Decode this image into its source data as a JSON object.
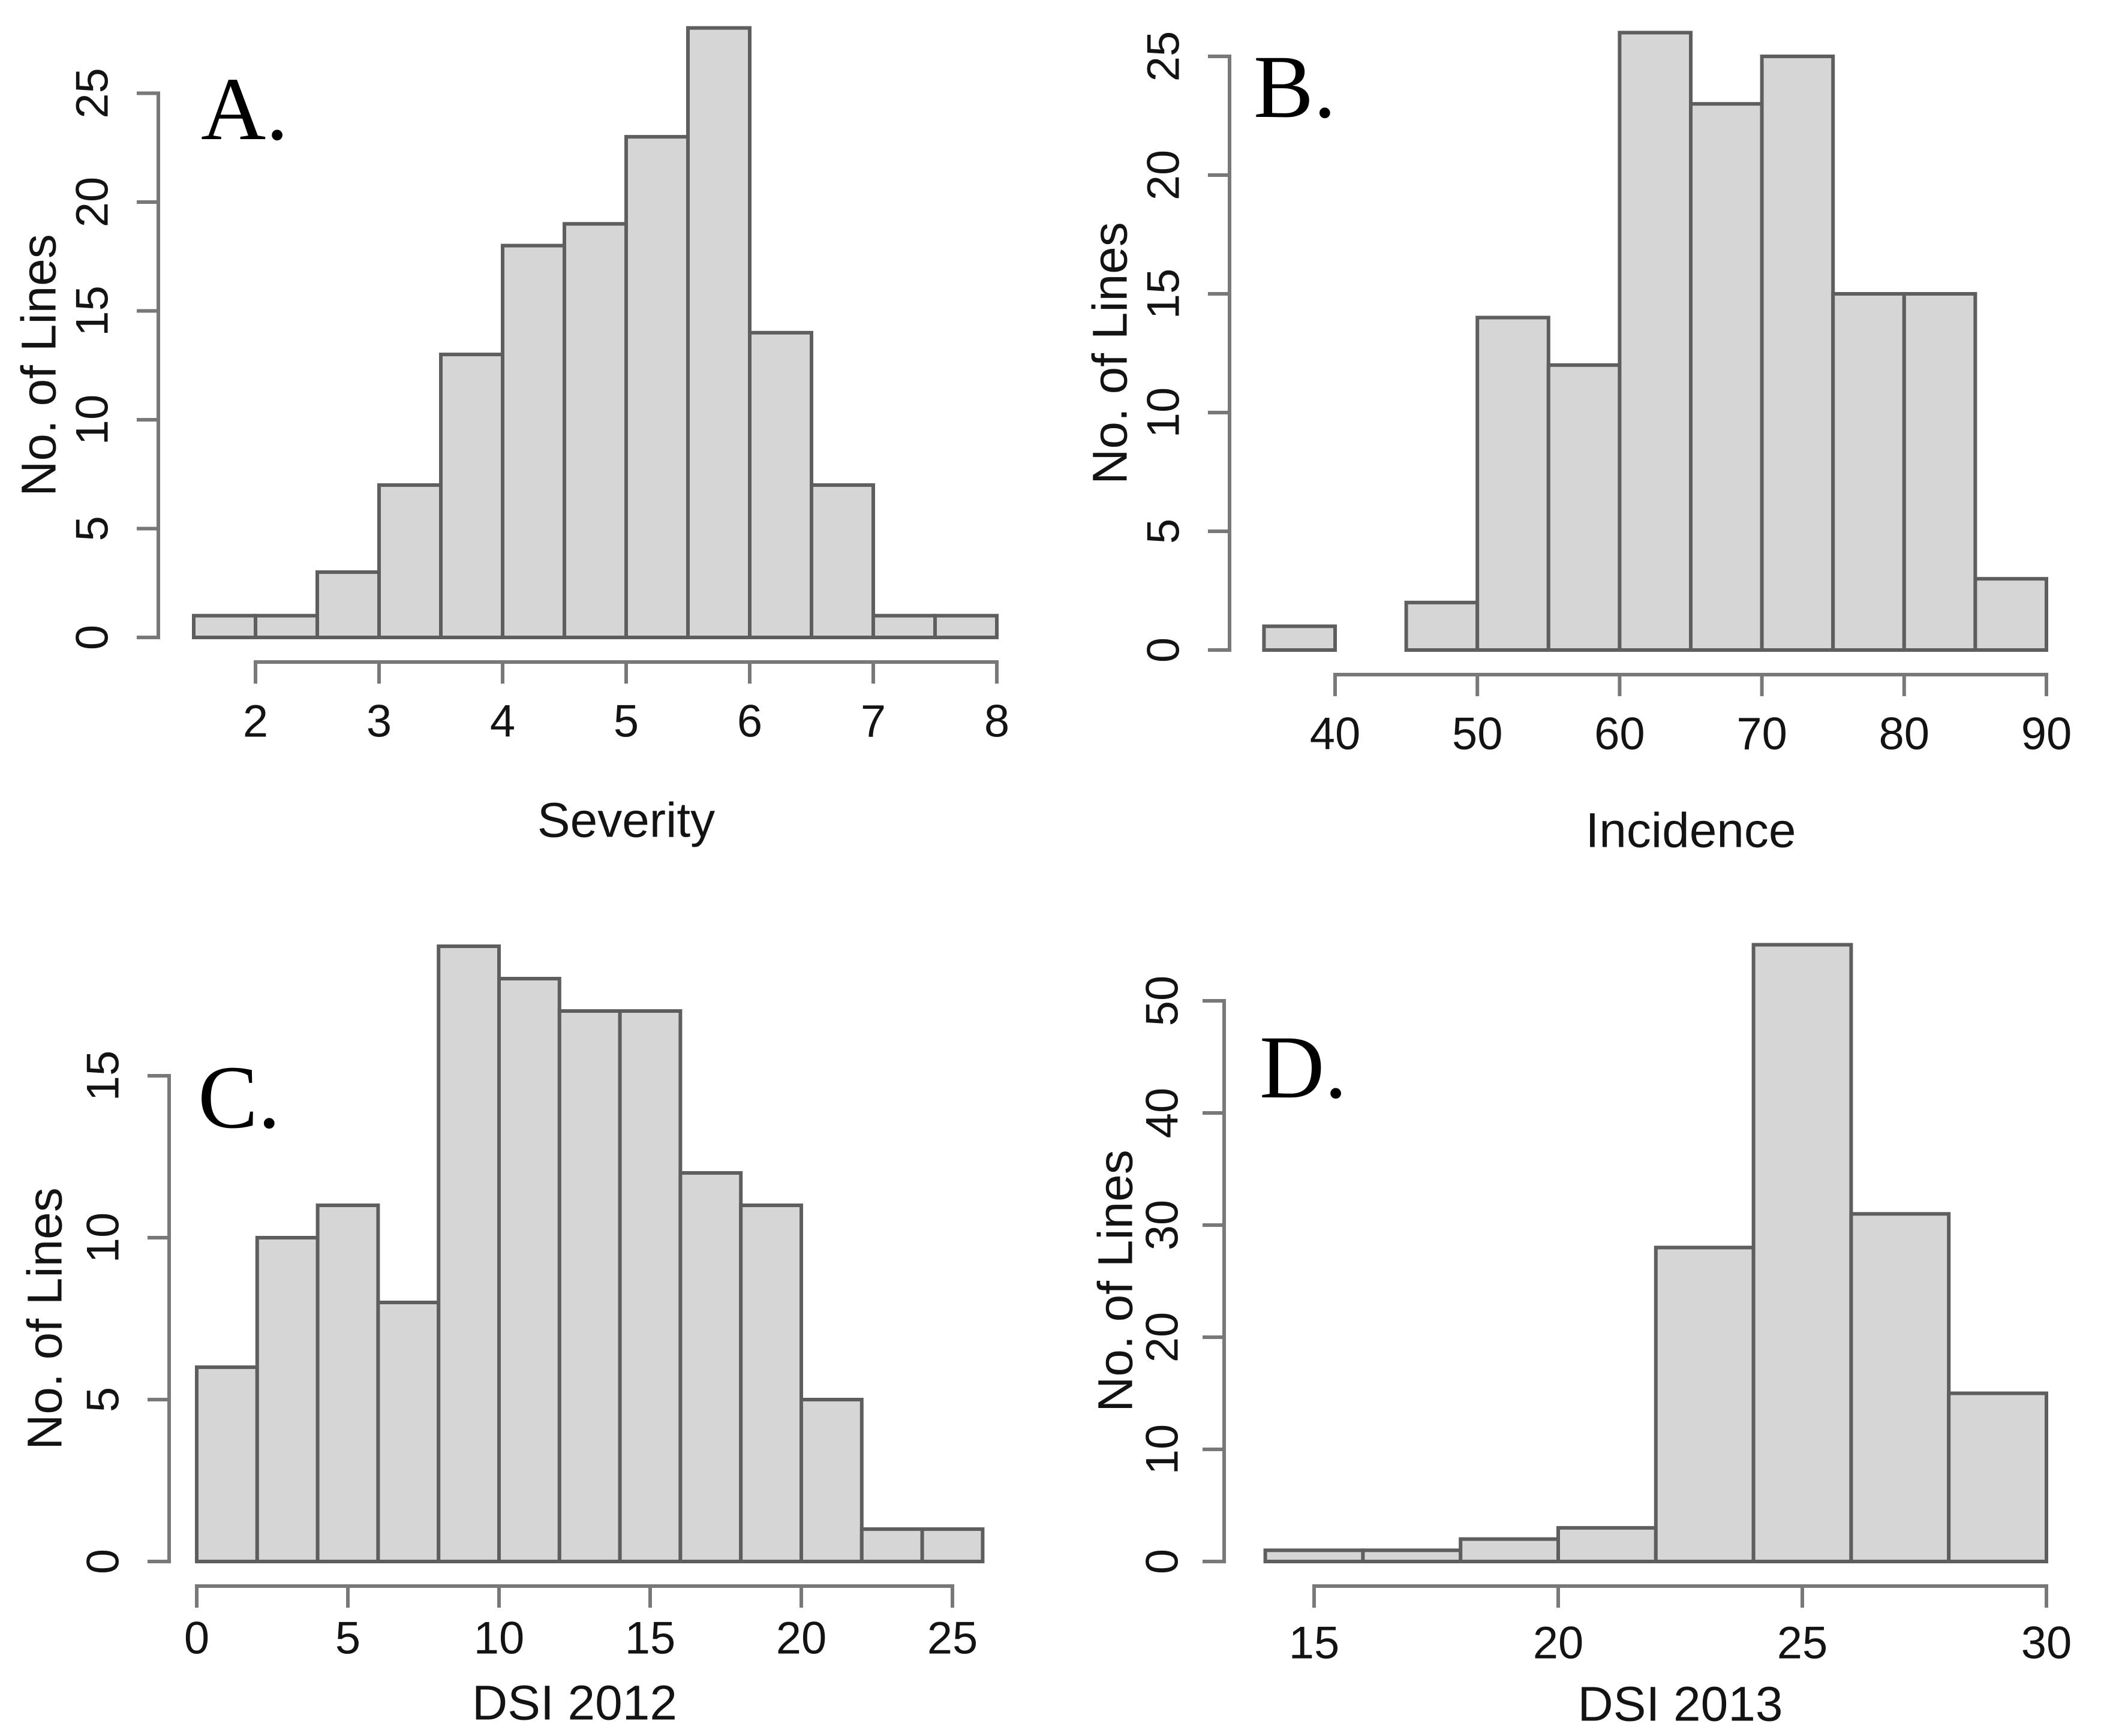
{
  "figure": {
    "background": "#ffffff",
    "bar_fill": "#d6d6d6",
    "bar_stroke": "#5e5e5e",
    "axis_color": "#787878",
    "text_color": "#131313"
  },
  "chart_data": [
    {
      "id": "A",
      "type": "bar",
      "panel_label": "A.",
      "xlabel": "Severity",
      "ylabel": "No. of Lines",
      "bin_start": 1.5,
      "bin_width": 0.5,
      "counts": [
        1,
        1,
        3,
        7,
        13,
        18,
        19,
        23,
        28,
        14,
        7,
        1,
        1
      ],
      "x_ticks": [
        2,
        3,
        4,
        5,
        6,
        7,
        8
      ],
      "y_ticks": [
        0,
        5,
        10,
        15,
        20,
        25
      ],
      "xlim": [
        1.5,
        8
      ],
      "ylim": [
        0,
        28
      ],
      "grid": false,
      "legend": "none"
    },
    {
      "id": "B",
      "type": "bar",
      "panel_label": "B.",
      "xlabel": "Incidence",
      "ylabel": "No. of Lines",
      "bin_start": 35,
      "bin_width": 5,
      "counts": [
        1,
        0,
        2,
        14,
        12,
        26,
        23,
        25,
        15,
        15,
        3
      ],
      "x_ticks": [
        40,
        50,
        60,
        70,
        80,
        90
      ],
      "y_ticks": [
        0,
        5,
        10,
        15,
        20,
        25
      ],
      "xlim": [
        35,
        90
      ],
      "ylim": [
        0,
        26
      ],
      "grid": false,
      "legend": "none"
    },
    {
      "id": "C",
      "type": "bar",
      "panel_label": "C.",
      "xlabel": "DSI 2012",
      "ylabel": "No. of Lines",
      "bin_start": 0,
      "bin_width": 2,
      "counts": [
        6,
        10,
        11,
        8,
        19,
        18,
        17,
        17,
        12,
        11,
        5,
        1,
        1
      ],
      "x_ticks": [
        0,
        5,
        10,
        15,
        20,
        25
      ],
      "y_ticks": [
        0,
        5,
        10,
        15
      ],
      "xlim": [
        0,
        26
      ],
      "ylim": [
        0,
        19
      ],
      "grid": false,
      "legend": "none"
    },
    {
      "id": "D",
      "type": "bar",
      "panel_label": "D.",
      "xlabel": "DSI 2013",
      "ylabel": "No. of Lines",
      "bin_start": 14,
      "bin_width": 2,
      "counts": [
        1,
        1,
        2,
        3,
        28,
        55,
        31,
        15
      ],
      "x_ticks": [
        15,
        20,
        25,
        30
      ],
      "y_ticks": [
        0,
        10,
        20,
        30,
        40,
        50
      ],
      "xlim": [
        14,
        30
      ],
      "ylim": [
        0,
        55
      ],
      "grid": false,
      "legend": "none"
    }
  ]
}
